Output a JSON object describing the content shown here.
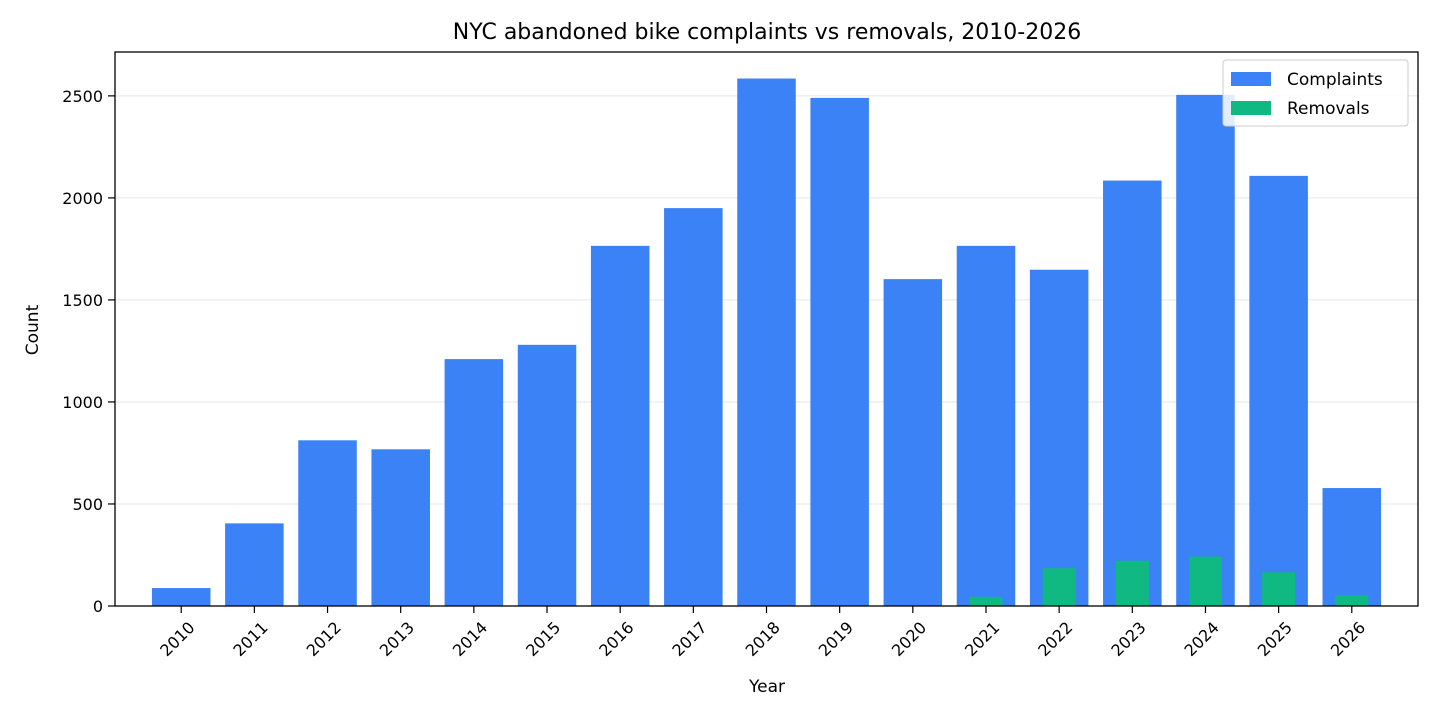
{
  "chart_data": {
    "type": "bar",
    "title": "NYC abandoned bike complaints vs removals, 2010-2026",
    "xlabel": "Year",
    "ylabel": "Count",
    "categories": [
      "2010",
      "2011",
      "2012",
      "2013",
      "2014",
      "2015",
      "2016",
      "2017",
      "2018",
      "2019",
      "2020",
      "2021",
      "2022",
      "2023",
      "2024",
      "2025",
      "2026"
    ],
    "series": [
      {
        "name": "Complaints",
        "color": "#3b82f6",
        "values": [
          88,
          405,
          812,
          768,
          1210,
          1280,
          1765,
          1950,
          2585,
          2490,
          1602,
          1765,
          1648,
          2085,
          2505,
          2108,
          578
        ]
      },
      {
        "name": "Removals",
        "color": "#10b981",
        "values": [
          0,
          0,
          0,
          0,
          0,
          0,
          0,
          0,
          0,
          0,
          0,
          45,
          185,
          222,
          242,
          165,
          52
        ]
      }
    ],
    "ylim": [
      0,
      2715
    ],
    "yticks": [
      0,
      500,
      1000,
      1500,
      2000,
      2500
    ],
    "grid": "horizontal",
    "legend": "top-right"
  }
}
